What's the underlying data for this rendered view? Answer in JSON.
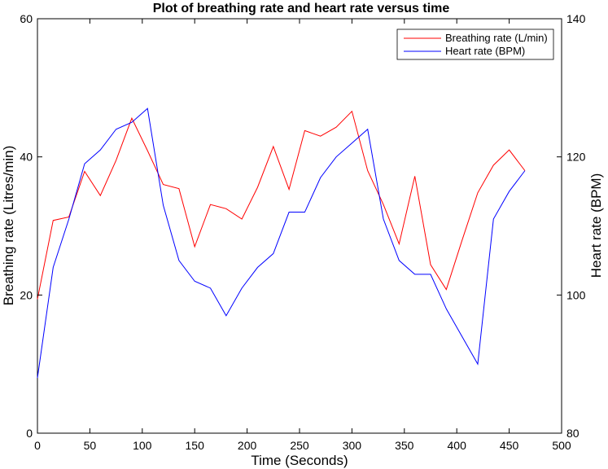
{
  "chart_data": {
    "type": "line",
    "title": "Plot of breathing rate and heart rate versus time",
    "xlabel": "Time (Seconds)",
    "ylabel_left": "Breathing rate (Litres/min)",
    "ylabel_right": "Heart rate (BPM)",
    "xlim": [
      0,
      500
    ],
    "ylim_left": [
      0,
      60
    ],
    "ylim_right": [
      80,
      140
    ],
    "x_ticks": [
      "0",
      "50",
      "100",
      "150",
      "200",
      "250",
      "300",
      "350",
      "400",
      "450",
      "500"
    ],
    "y_left_ticks": [
      "0",
      "20",
      "40",
      "60"
    ],
    "y_right_ticks": [
      "80",
      "100",
      "120",
      "140"
    ],
    "grid": false,
    "legend_position": "top-right",
    "series": [
      {
        "name": "Breathing rate (L/min)",
        "axis": "left",
        "color": "#ff0000",
        "x": [
          0,
          15,
          30,
          45,
          60,
          75,
          90,
          105,
          120,
          135,
          150,
          165,
          180,
          195,
          210,
          225,
          240,
          255,
          270,
          285,
          300,
          315,
          330,
          345,
          360,
          375,
          390,
          405,
          420,
          435,
          450,
          465
        ],
        "y": [
          19.4,
          30.8,
          31.3,
          37.9,
          34.4,
          39.5,
          45.6,
          40.9,
          36.0,
          35.4,
          27.0,
          33.1,
          32.5,
          31.0,
          35.6,
          41.5,
          35.3,
          43.8,
          43.0,
          44.3,
          46.6,
          38.0,
          33.1,
          27.4,
          37.2,
          24.4,
          20.8,
          27.9,
          34.8,
          38.8,
          41.0,
          38.0
        ]
      },
      {
        "name": "Heart rate (BPM)",
        "axis": "right",
        "color": "#0000ff",
        "x": [
          0,
          15,
          30,
          45,
          60,
          75,
          90,
          105,
          120,
          135,
          150,
          165,
          180,
          195,
          210,
          225,
          240,
          255,
          270,
          285,
          300,
          315,
          330,
          345,
          360,
          375,
          390,
          405,
          420,
          435,
          450,
          465
        ],
        "y": [
          88,
          104,
          111,
          119,
          121,
          124,
          125,
          127,
          113,
          105,
          102,
          101,
          97,
          101,
          104,
          106,
          112,
          112,
          117,
          120,
          122,
          124,
          111,
          105,
          103,
          103,
          98,
          94,
          90,
          111,
          115,
          118
        ]
      }
    ]
  }
}
